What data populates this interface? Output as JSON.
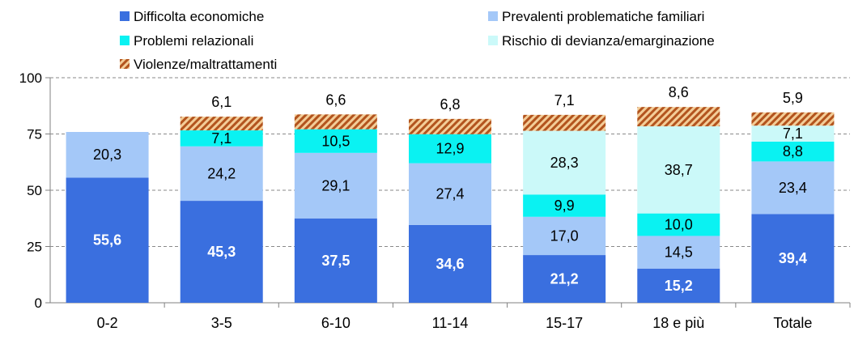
{
  "chart_data": {
    "type": "bar",
    "stacked": true,
    "categories": [
      "0-2",
      "3-5",
      "6-10",
      "11-14",
      "15-17",
      "18 e più",
      "Totale"
    ],
    "series": [
      {
        "name": "Difficolta economiche",
        "color": "#3a6fdf",
        "pattern": "solid",
        "values": [
          55.6,
          45.3,
          37.5,
          34.6,
          21.2,
          15.2,
          39.4
        ],
        "labels": [
          "55,6",
          "45,3",
          "37,5",
          "34,6",
          "21,2",
          "15,2",
          "39,4"
        ]
      },
      {
        "name": "Prevalenti problematiche familiari",
        "color": "#a4c8f8",
        "pattern": "solid",
        "values": [
          20.3,
          24.2,
          29.1,
          27.4,
          17.0,
          14.5,
          23.4
        ],
        "labels": [
          "20,3",
          "24,2",
          "29,1",
          "27,4",
          "17,0",
          "14,5",
          "23,4"
        ]
      },
      {
        "name": "Problemi relazionali",
        "color": "#0af2f2",
        "pattern": "solid",
        "values": [
          0,
          7.1,
          10.5,
          12.9,
          9.9,
          10.0,
          8.8
        ],
        "labels": [
          "",
          "7,1",
          "10,5",
          "12,9",
          "9,9",
          "10,0",
          "8,8"
        ]
      },
      {
        "name": "Rischio di devianza/emarginazione",
        "color": "#cbf9f9",
        "pattern": "solid",
        "values": [
          0,
          0,
          0,
          0,
          28.3,
          38.7,
          7.1
        ],
        "labels": [
          "",
          "",
          "",
          "",
          "28,3",
          "38,7",
          "7,1"
        ]
      },
      {
        "name": "Violenze/maltrattamenti",
        "color": "#b3541e",
        "pattern": "hatch",
        "values": [
          0,
          6.1,
          6.6,
          6.8,
          7.1,
          8.6,
          5.9
        ],
        "labels": [
          "",
          "6,1",
          "6,6",
          "6,8",
          "7,1",
          "8,6",
          "5,9"
        ]
      }
    ],
    "yticks": [
      "0",
      "25",
      "50",
      "75",
      "100"
    ],
    "ylim": [
      0,
      100
    ],
    "grid": true,
    "legend_position": "top",
    "title": "",
    "xlabel": "",
    "ylabel": ""
  }
}
